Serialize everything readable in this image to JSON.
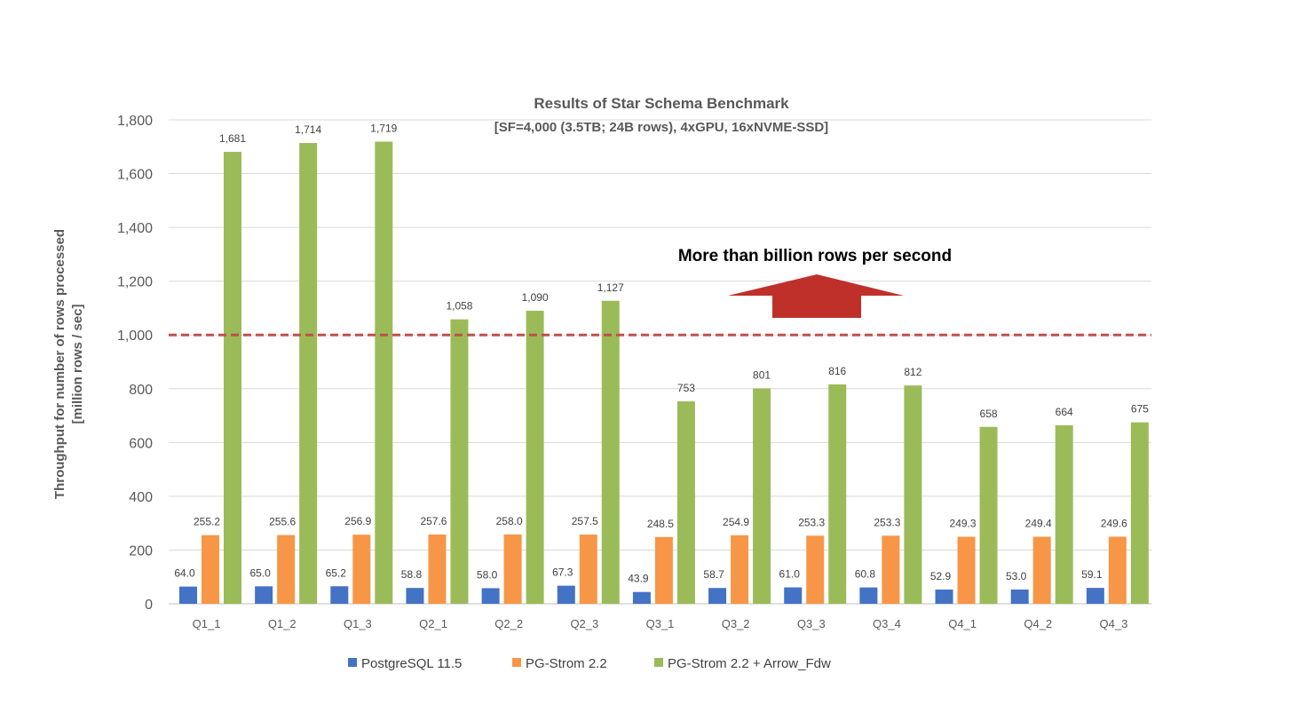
{
  "chart_data": {
    "type": "bar",
    "title": "Results of Star Schema Benchmark",
    "subtitle": "[SF=4,000 (3.5TB; 24B rows), 4xGPU, 16xNVME-SSD]",
    "ylabel_line1": "Throughput for number of rows processed",
    "ylabel_line2": "[million rows / sec]",
    "xlabel": "",
    "ylim": [
      0,
      1800
    ],
    "yticks": [
      0,
      200,
      400,
      600,
      800,
      1000,
      1200,
      1400,
      1600,
      1800
    ],
    "ytick_labels": [
      "0",
      "200",
      "400",
      "600",
      "800",
      "1,000",
      "1,200",
      "1,400",
      "1,600",
      "1,800"
    ],
    "grid": true,
    "legend_position": "bottom",
    "categories": [
      "Q1_1",
      "Q1_2",
      "Q1_3",
      "Q2_1",
      "Q2_2",
      "Q2_3",
      "Q3_1",
      "Q3_2",
      "Q3_3",
      "Q3_4",
      "Q4_1",
      "Q4_2",
      "Q4_3"
    ],
    "series": [
      {
        "name": "PostgreSQL 11.5",
        "color": "#4472c4",
        "values": [
          64.0,
          65.0,
          65.2,
          58.8,
          58.0,
          67.3,
          43.9,
          58.7,
          61.0,
          60.8,
          52.9,
          53.0,
          59.1
        ],
        "labels": [
          "64.0",
          "65.0",
          "65.2",
          "58.8",
          "58.0",
          "67.3",
          "43.9",
          "58.7",
          "61.0",
          "60.8",
          "52.9",
          "53.0",
          "59.1"
        ]
      },
      {
        "name": "PG-Strom 2.2",
        "color": "#f79646",
        "values": [
          255.2,
          255.6,
          256.9,
          257.6,
          258.0,
          257.5,
          248.5,
          254.9,
          253.3,
          253.3,
          249.3,
          249.4,
          249.6
        ],
        "labels": [
          "255.2",
          "255.6",
          "256.9",
          "257.6",
          "258.0",
          "257.5",
          "248.5",
          "254.9",
          "253.3",
          "253.3",
          "249.3",
          "249.4",
          "249.6"
        ]
      },
      {
        "name": "PG-Strom 2.2 + Arrow_Fdw",
        "color": "#9bbb59",
        "values": [
          1681,
          1714,
          1719,
          1058,
          1090,
          1127,
          753,
          801,
          816,
          812,
          658,
          664,
          675
        ],
        "labels": [
          "1,681",
          "1,714",
          "1,719",
          "1,058",
          "1,090",
          "1,127",
          "753",
          "801",
          "816",
          "812",
          "658",
          "664",
          "675"
        ]
      }
    ],
    "reference_line": {
      "value": 1000,
      "color": "#c0504d",
      "style": "dashed"
    },
    "annotation": {
      "text": "More than billion rows per second",
      "arrow_color": "#c0302a",
      "direction": "up"
    }
  }
}
